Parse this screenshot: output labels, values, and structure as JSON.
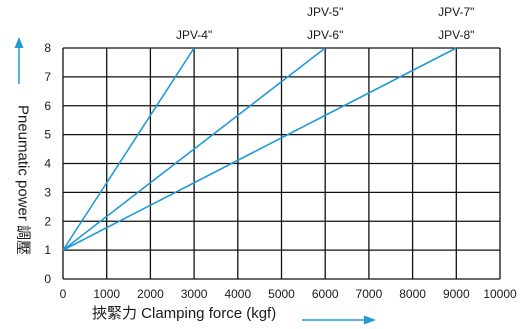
{
  "chart_data": {
    "type": "line",
    "xlabel": "挾緊力 Clamping force (kgf)",
    "ylabel": "Pneumatic power 調壓",
    "xlim": [
      0,
      10000
    ],
    "ylim": [
      0,
      8
    ],
    "x_ticks": [
      "0",
      "1000",
      "2000",
      "3000",
      "4000",
      "5000",
      "6000",
      "7000",
      "8000",
      "9000",
      "10000"
    ],
    "y_ticks": [
      "0",
      "1",
      "2",
      "3",
      "4",
      "5",
      "6",
      "7",
      "8"
    ],
    "grid": true,
    "line_color": "#1e9bd7",
    "axis_arrow_color": "#1e9bd7",
    "series": [
      {
        "labels": [
          "JPV-4\""
        ],
        "points": [
          [
            0,
            1
          ],
          [
            3000,
            8
          ]
        ]
      },
      {
        "labels": [
          "JPV-5\"",
          "JPV-6\""
        ],
        "points": [
          [
            0,
            1
          ],
          [
            6000,
            8
          ]
        ]
      },
      {
        "labels": [
          "JPV-7\"",
          "JPV-8\""
        ],
        "points": [
          [
            0,
            1
          ],
          [
            9000,
            8
          ]
        ]
      }
    ]
  }
}
